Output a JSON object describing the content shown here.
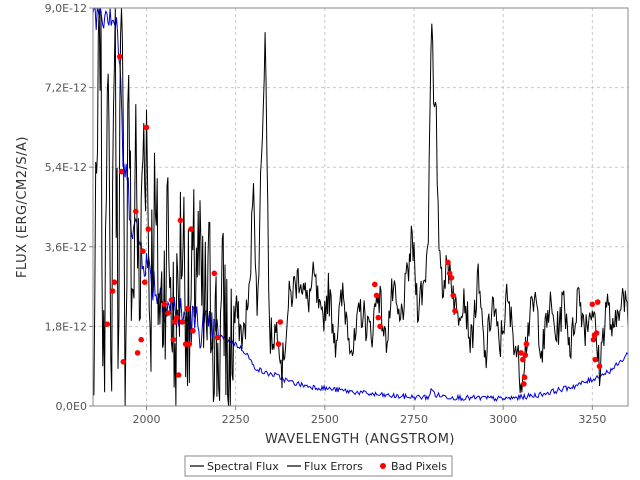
{
  "chart_data": {
    "type": "line",
    "xlabel": "WAVELENGTH (ANGSTROM)",
    "ylabel": "FLUX (ERG/CM2/S/A)",
    "xlim": [
      1850,
      3350
    ],
    "ylim": [
      0,
      9e-12
    ],
    "x_ticks": [
      2000,
      2250,
      2500,
      2750,
      3000,
      3250
    ],
    "x_tick_labels": [
      "2000",
      "2250",
      "2500",
      "2750",
      "3000",
      "3250"
    ],
    "y_ticks": [
      0,
      1.8e-12,
      3.6e-12,
      5.4e-12,
      7.2e-12,
      9e-12
    ],
    "y_tick_labels": [
      "0,0E0",
      "1,8E-12",
      "3,6E-12",
      "5,4E-12",
      "7,2E-12",
      "9,0E-12"
    ],
    "grid": true,
    "legend_position": "bottom",
    "series": [
      {
        "name": "Spectral Flux",
        "color": "#000000",
        "anchors": [
          [
            1850,
            0.0
          ],
          [
            1870,
            9.0
          ],
          [
            1880,
            0.0
          ],
          [
            1890,
            9.0
          ],
          [
            1900,
            0.0
          ],
          [
            1910,
            9.0
          ],
          [
            1920,
            2.4
          ],
          [
            1930,
            9.0
          ],
          [
            1940,
            0.5
          ],
          [
            1950,
            8.0
          ],
          [
            1960,
            1.0
          ],
          [
            1970,
            6.5
          ],
          [
            1980,
            1.5
          ],
          [
            1990,
            6.0
          ],
          [
            2000,
            6.3
          ],
          [
            2010,
            2.0
          ],
          [
            2020,
            4.5
          ],
          [
            2040,
            2.0
          ],
          [
            2060,
            4.0
          ],
          [
            2080,
            1.0
          ],
          [
            2100,
            4.2
          ],
          [
            2120,
            1.5
          ],
          [
            2140,
            3.6
          ],
          [
            2160,
            1.8
          ],
          [
            2180,
            2.6
          ],
          [
            2200,
            1.2
          ],
          [
            2220,
            2.4
          ],
          [
            2230,
            0.5
          ],
          [
            2250,
            2.2
          ],
          [
            2270,
            1.5
          ],
          [
            2290,
            2.6
          ],
          [
            2300,
            5.4
          ],
          [
            2310,
            1.8
          ],
          [
            2320,
            5.0
          ],
          [
            2333,
            8.5
          ],
          [
            2345,
            1.5
          ],
          [
            2370,
            1.8
          ],
          [
            2380,
            0.8
          ],
          [
            2400,
            2.4
          ],
          [
            2430,
            3.0
          ],
          [
            2450,
            2.3
          ],
          [
            2470,
            2.9
          ],
          [
            2490,
            1.8
          ],
          [
            2510,
            2.6
          ],
          [
            2530,
            1.5
          ],
          [
            2550,
            2.5
          ],
          [
            2580,
            1.2
          ],
          [
            2600,
            2.2
          ],
          [
            2630,
            1.6
          ],
          [
            2650,
            2.7
          ],
          [
            2670,
            1.4
          ],
          [
            2690,
            2.6
          ],
          [
            2710,
            1.8
          ],
          [
            2730,
            2.8
          ],
          [
            2745,
            3.8
          ],
          [
            2760,
            2.3
          ],
          [
            2780,
            2.8
          ],
          [
            2790,
            4.0
          ],
          [
            2797,
            8.2
          ],
          [
            2800,
            9.0
          ],
          [
            2806,
            6.4
          ],
          [
            2812,
            6.6
          ],
          [
            2818,
            4.0
          ],
          [
            2830,
            2.8
          ],
          [
            2850,
            3.2
          ],
          [
            2870,
            2.0
          ],
          [
            2890,
            2.6
          ],
          [
            2910,
            1.4
          ],
          [
            2930,
            2.8
          ],
          [
            2950,
            1.0
          ],
          [
            2970,
            2.4
          ],
          [
            2990,
            1.3
          ],
          [
            3010,
            2.4
          ],
          [
            3030,
            1.6
          ],
          [
            3050,
            0.6
          ],
          [
            3070,
            1.8
          ],
          [
            3090,
            2.4
          ],
          [
            3110,
            1.2
          ],
          [
            3130,
            2.3
          ],
          [
            3150,
            1.6
          ],
          [
            3170,
            2.4
          ],
          [
            3190,
            1.3
          ],
          [
            3210,
            2.6
          ],
          [
            3230,
            1.8
          ],
          [
            3250,
            2.3
          ],
          [
            3270,
            0.8
          ],
          [
            3290,
            2.4
          ],
          [
            3310,
            1.5
          ],
          [
            3330,
            2.6
          ],
          [
            3350,
            2.0
          ]
        ]
      },
      {
        "name": "Flux Errors",
        "color": "#0000dd",
        "anchors": [
          [
            1850,
            9.0
          ],
          [
            1900,
            9.0
          ],
          [
            1920,
            8.5
          ],
          [
            1935,
            5.5
          ],
          [
            1950,
            4.8
          ],
          [
            1960,
            4.2
          ],
          [
            1975,
            3.8
          ],
          [
            1990,
            3.5
          ],
          [
            2000,
            3.2
          ],
          [
            2010,
            3.0
          ],
          [
            2030,
            2.6
          ],
          [
            2050,
            2.4
          ],
          [
            2070,
            2.2
          ],
          [
            2100,
            2.0
          ],
          [
            2150,
            1.8
          ],
          [
            2200,
            1.6
          ],
          [
            2250,
            1.4
          ],
          [
            2280,
            1.2
          ],
          [
            2300,
            0.9
          ],
          [
            2330,
            0.75
          ],
          [
            2360,
            0.7
          ],
          [
            2400,
            0.55
          ],
          [
            2450,
            0.45
          ],
          [
            2500,
            0.4
          ],
          [
            2550,
            0.35
          ],
          [
            2600,
            0.3
          ],
          [
            2650,
            0.25
          ],
          [
            2700,
            0.22
          ],
          [
            2750,
            0.2
          ],
          [
            2790,
            0.2
          ],
          [
            2800,
            0.38
          ],
          [
            2810,
            0.25
          ],
          [
            2850,
            0.2
          ],
          [
            2900,
            0.18
          ],
          [
            2950,
            0.18
          ],
          [
            3000,
            0.16
          ],
          [
            3050,
            0.2
          ],
          [
            3070,
            0.22
          ],
          [
            3100,
            0.25
          ],
          [
            3150,
            0.35
          ],
          [
            3200,
            0.45
          ],
          [
            3250,
            0.6
          ],
          [
            3300,
            0.8
          ],
          [
            3330,
            1.0
          ],
          [
            3350,
            1.2
          ]
        ]
      },
      {
        "name": "Bad Pixels",
        "color": "#ff0000",
        "points": [
          [
            1890,
            1.85
          ],
          [
            1905,
            2.6
          ],
          [
            1910,
            2.8
          ],
          [
            1925,
            7.9
          ],
          [
            1930,
            5.3
          ],
          [
            1935,
            1.0
          ],
          [
            1970,
            4.4
          ],
          [
            1975,
            1.2
          ],
          [
            1985,
            1.5
          ],
          [
            1990,
            3.5
          ],
          [
            1995,
            2.8
          ],
          [
            2000,
            6.3
          ],
          [
            2005,
            4.0
          ],
          [
            2050,
            2.3
          ],
          [
            2060,
            2.1
          ],
          [
            2070,
            2.4
          ],
          [
            2075,
            1.5
          ],
          [
            2080,
            1.9
          ],
          [
            2085,
            2.0
          ],
          [
            2090,
            0.7
          ],
          [
            2095,
            4.2
          ],
          [
            2100,
            1.9
          ],
          [
            2110,
            1.4
          ],
          [
            2115,
            2.2
          ],
          [
            2120,
            1.4
          ],
          [
            2125,
            4.0
          ],
          [
            2130,
            1.7
          ],
          [
            2190,
            3.0
          ],
          [
            2200,
            1.55
          ],
          [
            2370,
            1.4
          ],
          [
            2375,
            1.9
          ],
          [
            2640,
            2.75
          ],
          [
            2645,
            2.5
          ],
          [
            2650,
            2.0
          ],
          [
            2655,
            1.8
          ],
          [
            2845,
            3.25
          ],
          [
            2850,
            3.0
          ],
          [
            2855,
            2.9
          ],
          [
            2860,
            2.5
          ],
          [
            2865,
            2.15
          ],
          [
            3050,
            1.2
          ],
          [
            3055,
            1.05
          ],
          [
            3058,
            0.5
          ],
          [
            3060,
            0.65
          ],
          [
            3062,
            1.15
          ],
          [
            3065,
            1.4
          ],
          [
            3250,
            2.3
          ],
          [
            3253,
            1.5
          ],
          [
            3256,
            1.6
          ],
          [
            3258,
            1.05
          ],
          [
            3262,
            1.65
          ],
          [
            3265,
            2.35
          ],
          [
            3270,
            0.9
          ]
        ]
      }
    ],
    "legend": [
      {
        "label": "Spectral Flux",
        "marker": "line",
        "color": "#000000"
      },
      {
        "label": "Flux Errors",
        "marker": "line",
        "color": "#000000"
      },
      {
        "label": "Bad Pixels",
        "marker": "dot",
        "color": "#ff0000"
      }
    ]
  }
}
